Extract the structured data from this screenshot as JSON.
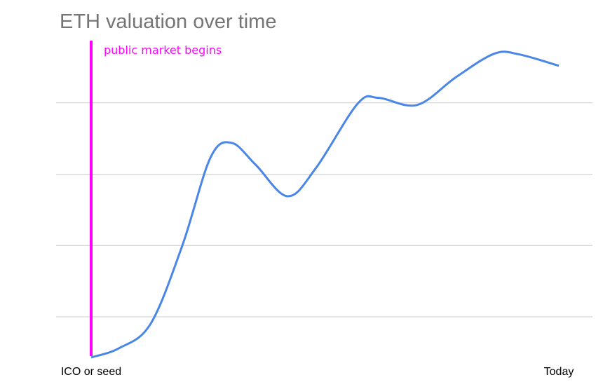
{
  "chart_data": {
    "type": "line",
    "title": "ETH valuation over time",
    "x": [
      0,
      6,
      12.7,
      19.5,
      25.5,
      30,
      35.2,
      42,
      48,
      57,
      61.5,
      69.7,
      78,
      86.2,
      91.5,
      100
    ],
    "series": [
      {
        "color": "#4a86e8",
        "values": [
          0.43,
          0.56,
          0.9,
          2.0,
          3.23,
          3.44,
          3.13,
          2.69,
          3.08,
          3.99,
          4.07,
          3.97,
          4.36,
          4.69,
          4.68,
          4.52
        ]
      }
    ],
    "xlim": [
      0,
      100
    ],
    "xticks": [
      {
        "value": 0,
        "label": "ICO or seed"
      },
      {
        "value": 100,
        "label": "Today"
      }
    ],
    "ylim": [
      0.4,
      5
    ],
    "yticks": [
      1,
      2,
      3,
      4
    ],
    "grid": true,
    "annotations": [
      {
        "x": 0,
        "label": "public market begins",
        "color": "#ff00ff"
      }
    ]
  }
}
